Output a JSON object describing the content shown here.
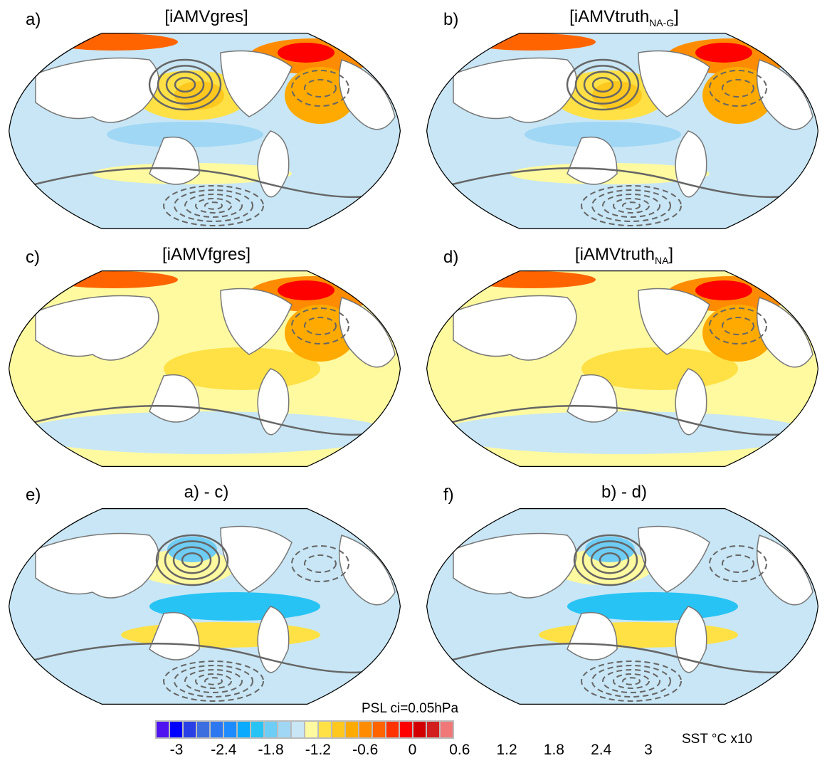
{
  "panels": [
    {
      "label": "a)",
      "title": "[iAMVgres]",
      "sub": "",
      "variant": "full"
    },
    {
      "label": "b)",
      "title": "[iAMVtruth",
      "sub": "NA-G",
      "close": "]",
      "variant": "full"
    },
    {
      "label": "c)",
      "title": "[iAMVfgres]",
      "sub": "",
      "variant": "warm"
    },
    {
      "label": "d)",
      "title": "[iAMVtruth",
      "sub": "NA",
      "close": "]",
      "variant": "warm"
    },
    {
      "label": "e)",
      "title": "a) - c)",
      "sub": "",
      "variant": "diff"
    },
    {
      "label": "f)",
      "title": "b) - d)",
      "sub": "",
      "variant": "diff"
    }
  ],
  "contour_label": "PSL ci=0.05hPa",
  "colorbar": {
    "label": "SST °C x10",
    "colors": [
      "#5014F0",
      "#0000FF",
      "#2840E6",
      "#3C6EE0",
      "#2D78F0",
      "#1E8CFF",
      "#0AAAFF",
      "#28C3F5",
      "#6ECDF5",
      "#A0D7F5",
      "#C8E6F5",
      "#FFFAA0",
      "#FFE146",
      "#FFC81E",
      "#FFAA00",
      "#FF8C00",
      "#FF6400",
      "#FF3200",
      "#FF0000",
      "#D20000",
      "#D21E1E",
      "#F07878"
    ],
    "ticks": [
      "-3",
      "-2.4",
      "-1.8",
      "-1.2",
      "-0.6",
      "0",
      "0.6",
      "1.2",
      "1.8",
      "2.4",
      "3"
    ]
  }
}
